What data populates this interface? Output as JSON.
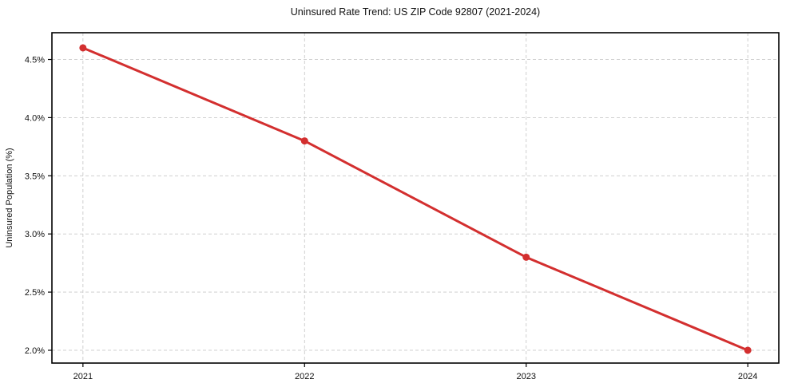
{
  "chart_data": {
    "type": "line",
    "title": "Uninsured Rate Trend: US ZIP Code 92807 (2021-2024)",
    "xlabel": "",
    "ylabel": "Uninsured Population (%)",
    "x": [
      2021,
      2022,
      2023,
      2024
    ],
    "values": [
      4.6,
      3.8,
      2.8,
      2.0
    ],
    "xticks": [
      2021,
      2022,
      2023,
      2024
    ],
    "xtick_labels": [
      "2021",
      "2022",
      "2023",
      "2024"
    ],
    "yticks": [
      2.0,
      2.5,
      3.0,
      3.5,
      4.0,
      4.5
    ],
    "ytick_labels": [
      "2.0%",
      "2.5%",
      "3.0%",
      "3.5%",
      "4.0%",
      "4.5%"
    ],
    "xlim": [
      2020.86,
      2024.14
    ],
    "ylim": [
      1.89,
      4.73
    ],
    "grid": true,
    "grid_style": "dashed",
    "legend": "none",
    "marker": "circle",
    "colors": {
      "line": "#d32f2f",
      "marker": "#d32f2f",
      "grid": "#c9c9c9",
      "axis": "#000000",
      "text": "#111111",
      "background": "#ffffff"
    }
  }
}
